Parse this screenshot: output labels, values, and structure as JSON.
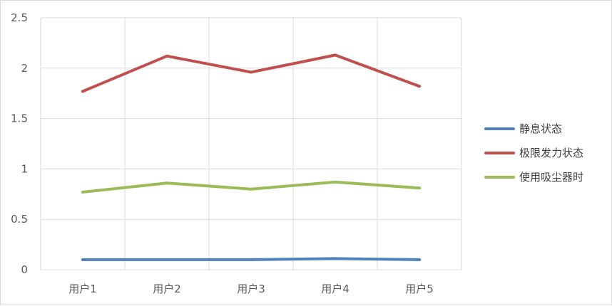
{
  "chart_data": {
    "type": "line",
    "title": "",
    "xlabel": "",
    "ylabel": "",
    "categories": [
      "用户1",
      "用户2",
      "用户3",
      "用户4",
      "用户5"
    ],
    "ylim": [
      0,
      2.5
    ],
    "yticks": [
      "0",
      "0.5",
      "1",
      "1.5",
      "2",
      "2.5"
    ],
    "grid": {
      "horizontal": true,
      "vertical": true
    },
    "legend_position": "right",
    "series": [
      {
        "name": "静息状态",
        "color": "#4f81bd",
        "values": [
          0.1,
          0.1,
          0.1,
          0.11,
          0.1
        ]
      },
      {
        "name": "极限发力状态",
        "color": "#c0504d",
        "values": [
          1.77,
          2.12,
          1.96,
          2.13,
          1.82
        ]
      },
      {
        "name": "使用吸尘器时",
        "color": "#9bbb59",
        "values": [
          0.77,
          0.86,
          0.8,
          0.87,
          0.81
        ]
      }
    ]
  }
}
